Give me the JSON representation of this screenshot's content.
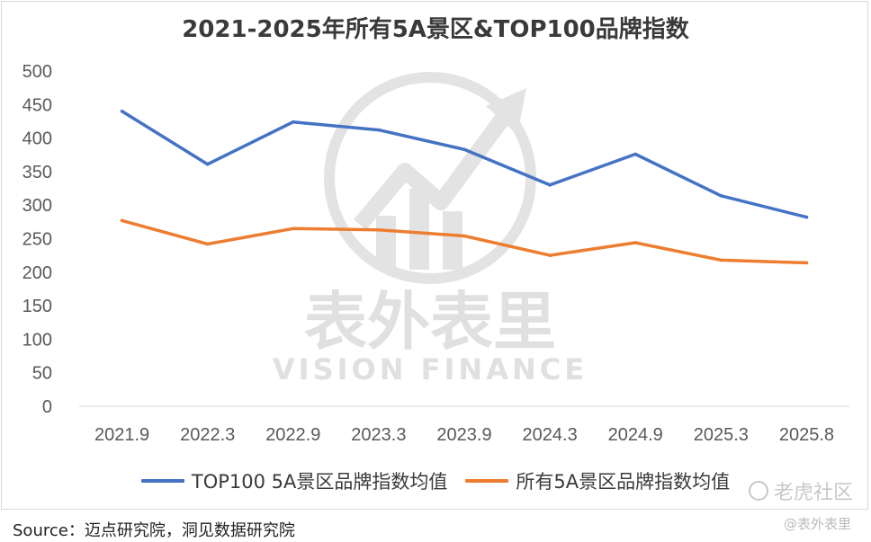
{
  "chart_data": {
    "type": "line",
    "title": "2021-2025年所有5A景区&TOP100品牌指数",
    "xlabel": "",
    "ylabel": "",
    "categories": [
      "2021.9",
      "2022.3",
      "2022.9",
      "2023.3",
      "2023.9",
      "2024.3",
      "2024.9",
      "2025.3",
      "2025.8"
    ],
    "series": [
      {
        "name": "TOP100 5A景区品牌指数均值",
        "color": "#4472c4",
        "values": [
          440,
          361,
          424,
          412,
          383,
          330,
          376,
          314,
          282
        ]
      },
      {
        "name": "所有5A景区品牌指数均值",
        "color": "#ed7d31",
        "values": [
          277,
          242,
          265,
          263,
          254,
          225,
          244,
          218,
          214
        ]
      }
    ],
    "ylim": [
      0,
      500
    ],
    "yticks": [
      0,
      50,
      100,
      150,
      200,
      250,
      300,
      350,
      400,
      450,
      500
    ],
    "grid": false,
    "legend_position": "bottom"
  },
  "watermark": {
    "text_cn": "表外表里",
    "text_en": "VISION FINANCE",
    "color": "#dcdcdc"
  },
  "source": "Source：迈点研究院，洞见数据研究院",
  "platform_mark": "老虎社区",
  "account_mark": "@表外表里"
}
